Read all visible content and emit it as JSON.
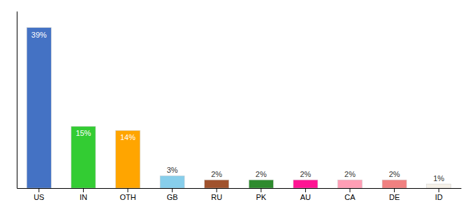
{
  "chart_data": {
    "type": "bar",
    "categories": [
      "US",
      "IN",
      "OTH",
      "GB",
      "RU",
      "PK",
      "AU",
      "CA",
      "DE",
      "ID"
    ],
    "values": [
      39,
      15,
      14,
      3,
      2,
      2,
      2,
      2,
      2,
      1
    ],
    "value_labels": [
      "39%",
      "15%",
      "14%",
      "3%",
      "2%",
      "2%",
      "2%",
      "2%",
      "2%",
      "1%"
    ],
    "colors": [
      "#4472c4",
      "#33cc33",
      "#ffa500",
      "#87ceeb",
      "#a0522d",
      "#2e8b2e",
      "#ff1493",
      "#ff9eb5",
      "#f08080",
      "#f5f0e8"
    ],
    "ylim": [
      0,
      43
    ],
    "data_labels": true,
    "tick_labels": "x"
  }
}
